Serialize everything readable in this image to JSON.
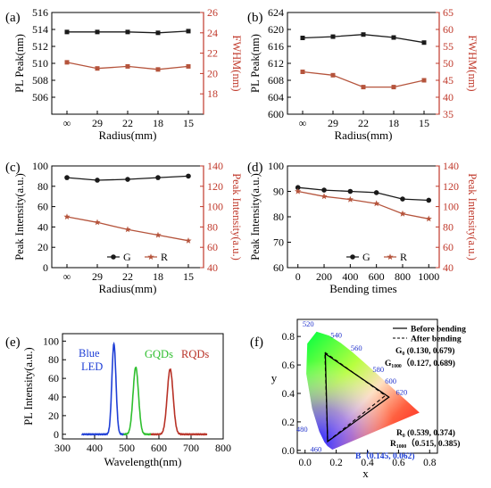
{
  "colors": {
    "black_series": "#1a1a1a",
    "red_axis": "#c0392b",
    "red_series": "#b5543c",
    "blue_led": "#1f3fd6",
    "green_qd": "#2fbf2f",
    "red_qd": "#b83227"
  },
  "chart_data": [
    {
      "id": "a",
      "panel_label": "(a)",
      "type": "line",
      "categories": [
        "∞",
        "29",
        "22",
        "18",
        "15"
      ],
      "xlabel": "Radius(mm)",
      "ylabel": "PL Peak(nm)",
      "ylabel_right": "FWHM(nm)",
      "ylim": [
        504,
        516
      ],
      "yticks": [
        506,
        508,
        510,
        512,
        514,
        516
      ],
      "ylim_right": [
        16,
        26
      ],
      "yticks_right": [
        18,
        20,
        22,
        24,
        26
      ],
      "series": [
        {
          "axis": "left",
          "color": "#1a1a1a",
          "marker": "square",
          "values": [
            513.7,
            513.7,
            513.7,
            513.6,
            513.8
          ]
        },
        {
          "axis": "right",
          "color": "#b5543c",
          "marker": "square",
          "values": [
            21.1,
            20.5,
            20.7,
            20.4,
            20.7
          ]
        }
      ]
    },
    {
      "id": "b",
      "panel_label": "(b)",
      "type": "line",
      "categories": [
        "∞",
        "29",
        "22",
        "18",
        "15"
      ],
      "xlabel": "Radius(mm)",
      "ylabel": "PL Peak(nm)",
      "ylabel_right": "FWHM(nm)",
      "ylim": [
        600,
        624
      ],
      "yticks": [
        600,
        604,
        608,
        612,
        616,
        620,
        624
      ],
      "ylim_right": [
        35,
        65
      ],
      "yticks_right": [
        35,
        40,
        45,
        50,
        55,
        60,
        65
      ],
      "series": [
        {
          "axis": "left",
          "color": "#1a1a1a",
          "marker": "square",
          "values": [
            618.0,
            618.3,
            618.8,
            618.1,
            616.9
          ]
        },
        {
          "axis": "right",
          "color": "#b5543c",
          "marker": "square",
          "values": [
            47.5,
            46.5,
            43.0,
            43.0,
            45.0
          ]
        }
      ]
    },
    {
      "id": "c",
      "panel_label": "(c)",
      "type": "line",
      "categories": [
        "∞",
        "29",
        "22",
        "18",
        "15"
      ],
      "xlabel": "Radius(mm)",
      "ylabel": "Peak Intensity(a.u.)",
      "ylabel_right": "Peak Intensity(a.u.)",
      "ylim": [
        0,
        100
      ],
      "yticks": [
        0,
        20,
        40,
        60,
        80,
        100
      ],
      "ylim_right": [
        40,
        140
      ],
      "yticks_right": [
        40,
        60,
        80,
        100,
        120,
        140
      ],
      "legend": [
        "G",
        "R"
      ],
      "legend_position": "bottom-left",
      "series": [
        {
          "axis": "left",
          "name": "G",
          "color": "#1a1a1a",
          "marker": "circle",
          "values": [
            88.5,
            86.0,
            86.8,
            88.5,
            90.0
          ]
        },
        {
          "axis": "right",
          "name": "R",
          "color": "#b5543c",
          "marker": "star",
          "values": [
            90.0,
            84.5,
            77.5,
            72.0,
            66.5
          ]
        }
      ]
    },
    {
      "id": "d",
      "panel_label": "(d)",
      "type": "line",
      "x": [
        0,
        200,
        400,
        600,
        800,
        1000
      ],
      "xticks": [
        0,
        200,
        400,
        600,
        800,
        1000
      ],
      "xlim": [
        -80,
        1080
      ],
      "xlabel": "Bending times",
      "ylabel": "Peak Intensity(a.u.)",
      "ylabel_right": "Peak Intensity(a.u.)",
      "ylim": [
        60,
        100
      ],
      "yticks": [
        60,
        70,
        80,
        90,
        100
      ],
      "ylim_right": [
        40,
        140
      ],
      "yticks_right": [
        40,
        60,
        80,
        100,
        120,
        140
      ],
      "legend": [
        "G",
        "R"
      ],
      "legend_position": "bottom-center",
      "series": [
        {
          "axis": "left",
          "name": "G",
          "color": "#1a1a1a",
          "marker": "circle",
          "values": [
            91.5,
            90.5,
            90.0,
            89.5,
            87.0,
            86.5
          ]
        },
        {
          "axis": "right",
          "name": "R",
          "color": "#b5543c",
          "marker": "star",
          "values": [
            115.0,
            110.0,
            107.0,
            103.0,
            93.0,
            88.0
          ]
        }
      ]
    },
    {
      "id": "e",
      "panel_label": "(e)",
      "type": "line",
      "xlabel": "Wavelength(nm)",
      "ylabel": "PL Intensity(a.u.)",
      "xlim": [
        300,
        800
      ],
      "xticks": [
        300,
        400,
        500,
        600,
        700,
        800
      ],
      "ylim": [
        -5,
        108
      ],
      "yticks": [
        0,
        20,
        40,
        60,
        80,
        100
      ],
      "annotations": [
        "Blue",
        "LED",
        "GQDs",
        "RQDs"
      ],
      "series": [
        {
          "color": "#1f3fd6",
          "peaks": [
            {
              "center": 460,
              "height": 97,
              "width": 9
            }
          ],
          "x_range": [
            360,
            500
          ]
        },
        {
          "color": "#2fbf2f",
          "peaks": [
            {
              "center": 528,
              "height": 72,
              "width": 12
            }
          ],
          "x_range": [
            490,
            580
          ]
        },
        {
          "color": "#b83227",
          "peaks": [
            {
              "center": 635,
              "height": 70,
              "width": 13
            }
          ],
          "x_range": [
            575,
            750
          ]
        }
      ]
    },
    {
      "id": "f",
      "panel_label": "(f)",
      "type": "scatter",
      "xlabel": "x",
      "ylabel": "y",
      "xlim": [
        -0.05,
        0.85
      ],
      "xticks": [
        0.0,
        0.2,
        0.4,
        0.6,
        0.8
      ],
      "xtick_labels": [
        "0.0",
        "0.2",
        "0.4",
        "0.6",
        "0.8"
      ],
      "ylim": [
        -0.02,
        0.92
      ],
      "yticks": [
        0.0,
        0.2,
        0.4,
        0.6,
        0.8
      ],
      "ytick_labels": [
        "0.0",
        "0.2",
        "0.4",
        "0.6",
        "0.8"
      ],
      "legend": [
        "Before bending",
        "After bending"
      ],
      "wavelength_labels": [
        "520",
        "540",
        "560",
        "580",
        "600",
        "620",
        "480",
        "460"
      ],
      "points_before": [
        [
          0.13,
          0.679
        ],
        [
          0.539,
          0.374
        ],
        [
          0.145,
          0.062
        ]
      ],
      "points_after": [
        [
          0.127,
          0.689
        ],
        [
          0.515,
          0.385
        ],
        [
          0.145,
          0.062
        ]
      ],
      "point_labels": {
        "g0": "G₀ (0.130, 0.679)",
        "g1000": "G₁₀₀₀（0.127, 0.689)",
        "r0": "R₀ (0.539, 0.374)",
        "r1000": "R₁₀₀₀（0.515, 0.385)",
        "b": "B（0.145, 0.062)"
      }
    }
  ]
}
